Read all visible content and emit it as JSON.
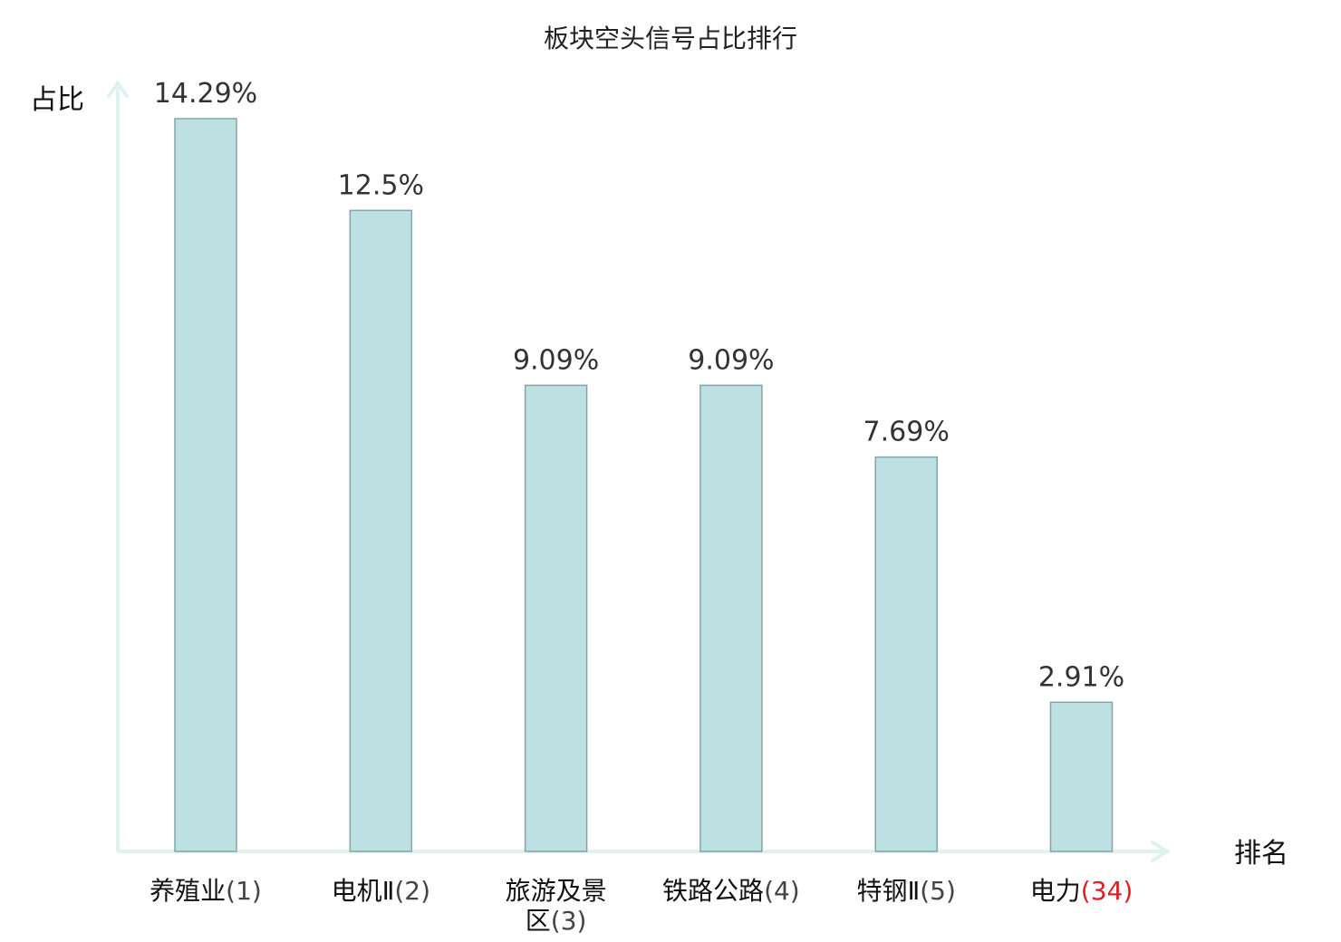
{
  "chart_data": {
    "type": "bar",
    "title": "板块空头信号占比排行",
    "ylabel": "占比",
    "xlabel": "排名",
    "ylim": [
      0,
      14.29
    ],
    "grid": false,
    "categories": [
      {
        "name": "养殖业",
        "rank": "(1)",
        "value": 14.29,
        "label": "14.29%",
        "highlight": false
      },
      {
        "name": "电机Ⅱ",
        "rank": "(2)",
        "value": 12.5,
        "label": "12.5%",
        "highlight": false
      },
      {
        "name": "旅游及景区",
        "rank": "(3)",
        "value": 9.09,
        "label": "9.09%",
        "highlight": false
      },
      {
        "name": "铁路公路",
        "rank": "(4)",
        "value": 9.09,
        "label": "9.09%",
        "highlight": false
      },
      {
        "name": "特钢Ⅱ",
        "rank": "(5)",
        "value": 7.69,
        "label": "7.69%",
        "highlight": false
      },
      {
        "name": "电力",
        "rank": "(34)",
        "value": 2.91,
        "label": "2.91%",
        "highlight": true
      }
    ],
    "colors": {
      "bar_fill": "#bde0e3",
      "bar_stroke": "#86a4a8",
      "axis": "#e0f2ef",
      "highlight_text": "#e02020"
    }
  }
}
